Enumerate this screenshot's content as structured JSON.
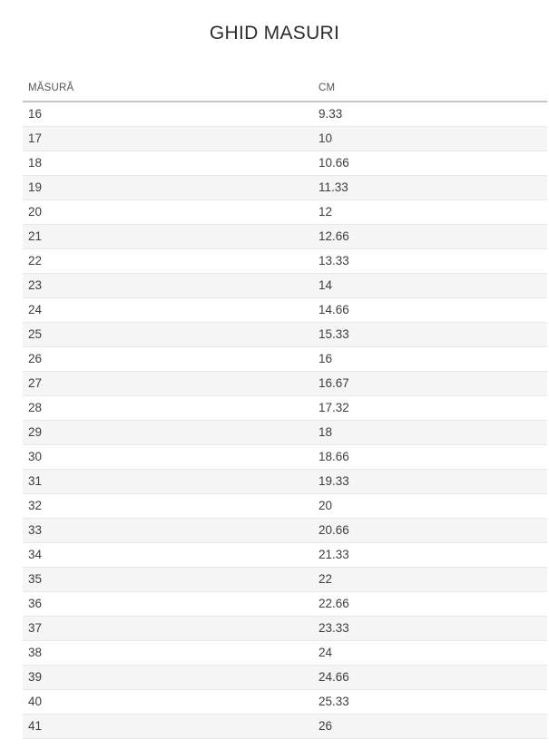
{
  "page": {
    "title": "GHID MASURI"
  },
  "size_table": {
    "columns": [
      {
        "label": "MĂSURĂ"
      },
      {
        "label": "CM"
      }
    ],
    "rows": [
      {
        "size": "16",
        "cm": "9.33"
      },
      {
        "size": "17",
        "cm": "10"
      },
      {
        "size": "18",
        "cm": "10.66"
      },
      {
        "size": "19",
        "cm": "11.33"
      },
      {
        "size": "20",
        "cm": "12"
      },
      {
        "size": "21",
        "cm": "12.66"
      },
      {
        "size": "22",
        "cm": "13.33"
      },
      {
        "size": "23",
        "cm": "14"
      },
      {
        "size": "24",
        "cm": "14.66"
      },
      {
        "size": "25",
        "cm": "15.33"
      },
      {
        "size": "26",
        "cm": "16"
      },
      {
        "size": "27",
        "cm": "16.67"
      },
      {
        "size": "28",
        "cm": "17.32"
      },
      {
        "size": "29",
        "cm": "18"
      },
      {
        "size": "30",
        "cm": "18.66"
      },
      {
        "size": "31",
        "cm": "19.33"
      },
      {
        "size": "32",
        "cm": "20"
      },
      {
        "size": "33",
        "cm": "20.66"
      },
      {
        "size": "34",
        "cm": "21.33"
      },
      {
        "size": "35",
        "cm": "22"
      },
      {
        "size": "36",
        "cm": "22.66"
      },
      {
        "size": "37",
        "cm": "23.33"
      },
      {
        "size": "38",
        "cm": "24"
      },
      {
        "size": "39",
        "cm": "24.66"
      },
      {
        "size": "40",
        "cm": "25.33"
      },
      {
        "size": "41",
        "cm": "26"
      }
    ]
  },
  "colors": {
    "title_text": "#2d2d2d",
    "header_text": "#565656",
    "cell_text": "#3e3e3e",
    "header_border": "#c6c6c6",
    "row_border": "#e8e8e8",
    "row_alt_background": "#f5f5f5",
    "page_background": "#ffffff"
  }
}
